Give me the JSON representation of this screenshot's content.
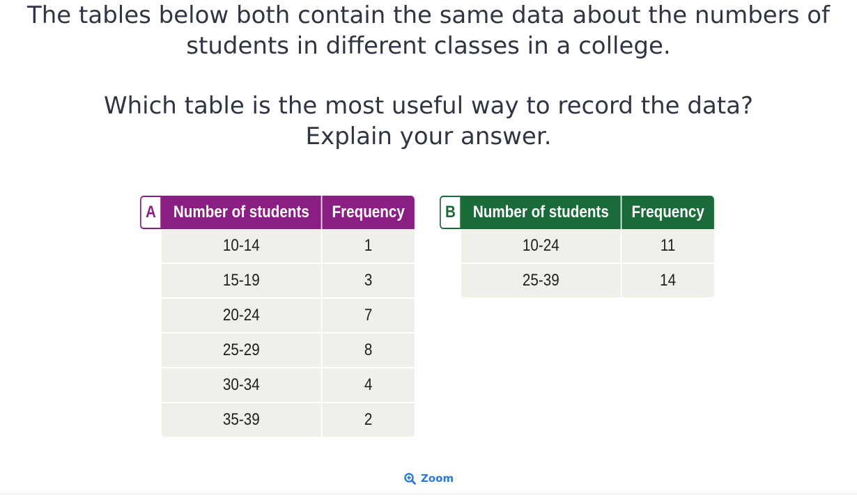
{
  "question": {
    "intro_lines": [
      "The tables below both contain the same data about the numbers of",
      "students in different classes in a college."
    ],
    "prompt_lines": [
      "Which table is the most useful way to record the data?",
      "Explain your answer."
    ]
  },
  "tables": {
    "a": {
      "letter": "A",
      "header_color": "#8b1e82",
      "headers": [
        "Number of students",
        "Frequency"
      ],
      "rows": [
        [
          "10-14",
          "1"
        ],
        [
          "15-19",
          "3"
        ],
        [
          "20-24",
          "7"
        ],
        [
          "25-29",
          "8"
        ],
        [
          "30-34",
          "4"
        ],
        [
          "35-39",
          "2"
        ]
      ]
    },
    "b": {
      "letter": "B",
      "header_color": "#1a6a3a",
      "headers": [
        "Number of students",
        "Frequency"
      ],
      "rows": [
        [
          "10-24",
          "11"
        ],
        [
          "25-39",
          "14"
        ]
      ]
    }
  },
  "zoom": {
    "label": "Zoom",
    "icon": "zoom-in-icon",
    "color": "#2a7bd6"
  }
}
